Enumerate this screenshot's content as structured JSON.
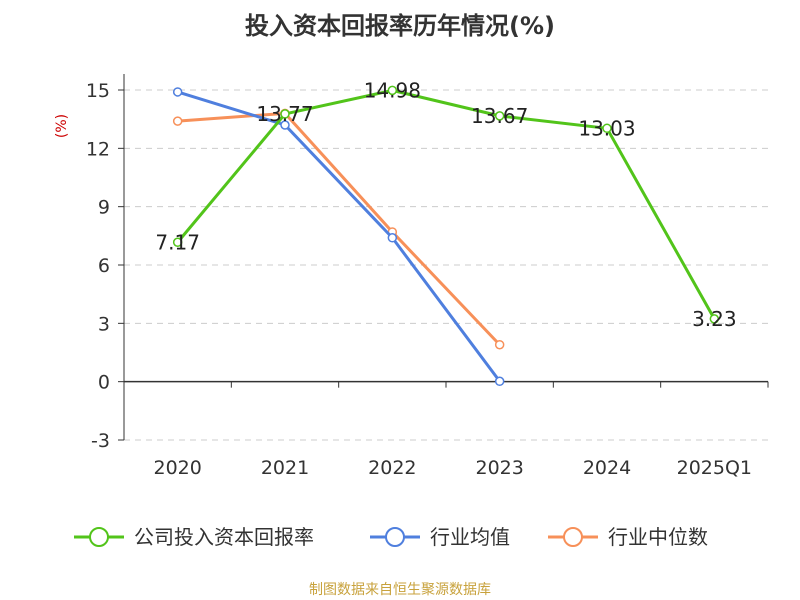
{
  "chart_data": {
    "type": "line",
    "title": "投入资本回报率历年情况(%)",
    "ylabel": "(%)",
    "xlabel": "",
    "categories": [
      "2020",
      "2021",
      "2022",
      "2023",
      "2024",
      "2025Q1"
    ],
    "ylim": [
      -3,
      15
    ],
    "yticks": [
      "15",
      "12",
      "9",
      "6",
      "3",
      "0",
      "-3"
    ],
    "grid": true,
    "legend_position": "bottom",
    "series": [
      {
        "name": "公司投入资本回报率",
        "color": "#52c41a",
        "values": [
          7.17,
          13.77,
          14.98,
          13.67,
          13.03,
          3.23
        ],
        "labels": [
          "7.17",
          "13.77",
          "14.98",
          "13.67",
          "13.03",
          "3.23"
        ]
      },
      {
        "name": "行业均值",
        "color": "#4f7fde",
        "values": [
          14.9,
          13.2,
          7.4,
          0.02,
          null,
          null
        ]
      },
      {
        "name": "行业中位数",
        "color": "#f79059",
        "values": [
          13.4,
          13.8,
          7.7,
          1.9,
          null,
          null
        ]
      }
    ]
  },
  "source_note": "制图数据来自恒生聚源数据库",
  "colors": {
    "title": "#333333",
    "axis_text": "#333333",
    "ylabel": "#cc0000",
    "grid": "#cccccc",
    "source": "#c8a23c"
  }
}
